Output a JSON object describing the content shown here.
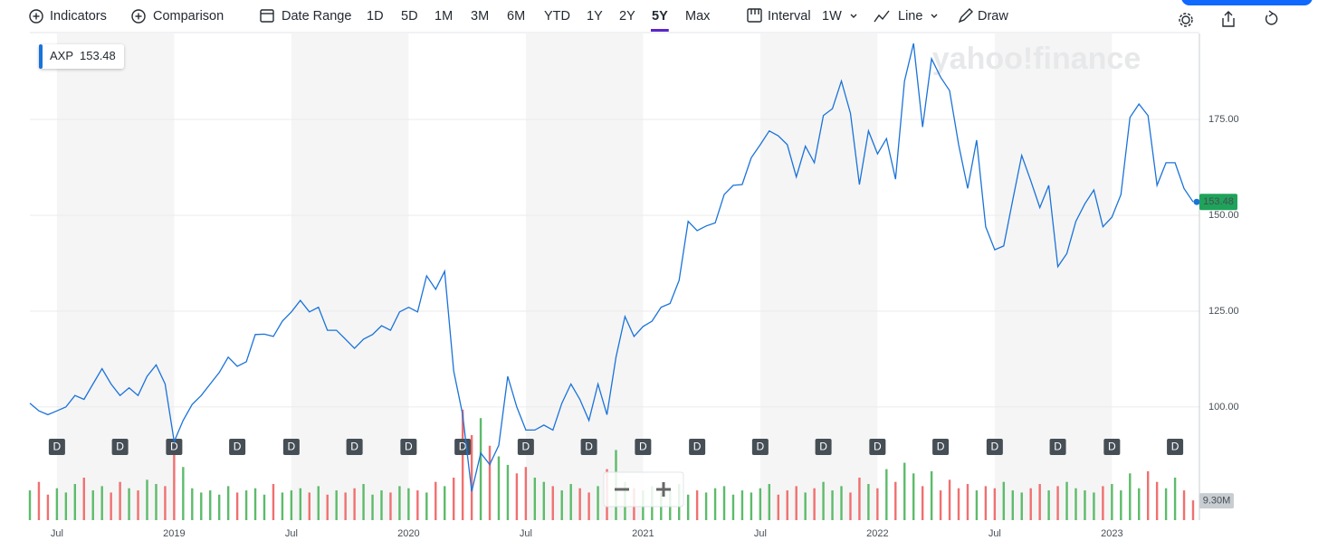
{
  "toolbar": {
    "indicators": "Indicators",
    "comparison": "Comparison",
    "date_range": "Date Range",
    "ranges": [
      "1D",
      "5D",
      "1M",
      "3M",
      "6M",
      "YTD",
      "1Y",
      "2Y",
      "5Y",
      "Max"
    ],
    "active_range": "5Y",
    "interval_label": "Interval",
    "interval": "1W",
    "chart_type": "Line",
    "draw": "Draw"
  },
  "chart_data": {
    "type": "line",
    "watermark": "yahoo!finance",
    "legend": {
      "name": "AXP",
      "value_label": "153.48"
    },
    "categories": [
      null,
      null,
      null,
      "Jul",
      null,
      null,
      null,
      null,
      null,
      null,
      null,
      null,
      null,
      null,
      null,
      null,
      "2019",
      null,
      null,
      null,
      null,
      null,
      null,
      null,
      null,
      null,
      null,
      null,
      null,
      "Jul",
      null,
      null,
      null,
      null,
      null,
      null,
      null,
      null,
      null,
      null,
      null,
      null,
      "2020",
      null,
      null,
      null,
      null,
      null,
      null,
      null,
      null,
      null,
      null,
      null,
      null,
      "Jul",
      null,
      null,
      null,
      null,
      null,
      null,
      null,
      null,
      null,
      null,
      null,
      null,
      "2021",
      null,
      null,
      null,
      null,
      null,
      null,
      null,
      null,
      null,
      null,
      null,
      null,
      "Jul",
      null,
      null,
      null,
      null,
      null,
      null,
      null,
      null,
      null,
      null,
      null,
      null,
      "2022",
      null,
      null,
      null,
      null,
      null,
      null,
      null,
      null,
      null,
      null,
      null,
      null,
      "Jul",
      null,
      null,
      null,
      null,
      null,
      null,
      null,
      null,
      null,
      null,
      null,
      null,
      "2023",
      null,
      null,
      null,
      null,
      null,
      null,
      null,
      null,
      null
    ],
    "series": [
      {
        "name": "AXP",
        "color": "#1a73d9",
        "values": [
          101,
          99,
          98,
          99,
          100,
          103,
          102,
          106,
          110,
          106,
          103,
          105,
          103,
          108,
          111,
          106,
          91,
          96.5,
          100.7,
          103,
          106,
          109,
          113,
          110.6,
          111.8,
          118.9,
          119,
          118.4,
          122.4,
          124.8,
          127.8,
          124.8,
          126,
          120,
          120,
          117.7,
          115.3,
          117.7,
          118.9,
          121.2,
          120,
          124.8,
          126,
          124.8,
          134.2,
          130.7,
          135.4,
          109.4,
          98,
          78,
          88,
          85,
          90,
          108,
          100,
          94,
          94,
          95.3,
          94,
          101,
          106,
          102,
          96.5,
          106,
          98,
          113,
          123.6,
          118.4,
          121,
          122.4,
          126,
          127,
          133,
          148.4,
          146,
          147.2,
          148,
          155.4,
          157.8,
          158,
          165,
          168.4,
          172,
          170.7,
          168.4,
          160,
          168,
          163.7,
          176,
          177.8,
          185,
          176.6,
          158,
          172,
          166,
          170,
          159.4,
          185,
          194.8,
          173,
          190.8,
          186,
          182.5,
          168.4,
          157,
          169.6,
          147,
          141,
          142,
          154,
          165.6,
          159,
          152,
          157.8,
          136.6,
          140,
          148.4,
          153,
          156.6,
          147,
          149.5,
          155.4,
          175.5,
          179,
          176,
          157.8,
          163.7,
          163.7,
          157,
          153.48
        ],
        "value_labels": {
          "129": "153.48"
        }
      }
    ],
    "volume": {
      "up_color": "#5dbb6a",
      "down_color": "#f07070",
      "vlim": [
        0,
        100
      ],
      "values": [
        14,
        18,
        12,
        15,
        13,
        17,
        20,
        14,
        16,
        13,
        18,
        15,
        14,
        19,
        17,
        16,
        32,
        25,
        15,
        13,
        14,
        12,
        16,
        13,
        14,
        15,
        12,
        17,
        13,
        14,
        15,
        13,
        16,
        12,
        14,
        13,
        15,
        17,
        12,
        14,
        13,
        16,
        15,
        14,
        13,
        18,
        16,
        20,
        52,
        40,
        48,
        35,
        30,
        26,
        22,
        25,
        20,
        18,
        16,
        14,
        17,
        15,
        13,
        16,
        24,
        33,
        18,
        15,
        14,
        16,
        13,
        15,
        17,
        12,
        14,
        13,
        15,
        16,
        12,
        14,
        13,
        15,
        17,
        12,
        14,
        16,
        13,
        15,
        18,
        14,
        16,
        13,
        20,
        17,
        15,
        24,
        18,
        27,
        22,
        16,
        23,
        14,
        19,
        15,
        17,
        14,
        16,
        15,
        18,
        14,
        13,
        15,
        17,
        14,
        16,
        18,
        15,
        14,
        13,
        16,
        17,
        14,
        22,
        15,
        23,
        18,
        15,
        20,
        14,
        9.3
      ],
      "value_labels": {
        "129": "9.30M"
      }
    },
    "dividend_markers": [
      {
        "index": 3,
        "label": "D"
      },
      {
        "index": 10,
        "label": "D"
      },
      {
        "index": 16,
        "label": "D"
      },
      {
        "index": 23,
        "label": "D"
      },
      {
        "index": 29,
        "label": "D"
      },
      {
        "index": 36,
        "label": "D"
      },
      {
        "index": 42,
        "label": "D"
      },
      {
        "index": 48,
        "label": "D"
      },
      {
        "index": 55,
        "label": "D"
      },
      {
        "index": 62,
        "label": "D"
      },
      {
        "index": 68,
        "label": "D"
      },
      {
        "index": 74,
        "label": "D"
      },
      {
        "index": 81,
        "label": "D"
      },
      {
        "index": 88,
        "label": "D"
      },
      {
        "index": 94,
        "label": "D"
      },
      {
        "index": 101,
        "label": "D"
      },
      {
        "index": 107,
        "label": "D"
      },
      {
        "index": 114,
        "label": "D"
      },
      {
        "index": 120,
        "label": "D"
      },
      {
        "index": 127,
        "label": "D"
      }
    ],
    "ylim": [
      70.5,
      197.4
    ],
    "yticks": [
      {
        "value": 100,
        "label": "100.00"
      },
      {
        "value": 125,
        "label": "125.00"
      },
      {
        "value": 150,
        "label": "150.00"
      },
      {
        "value": 175,
        "label": "175.00"
      }
    ],
    "grid": true
  }
}
